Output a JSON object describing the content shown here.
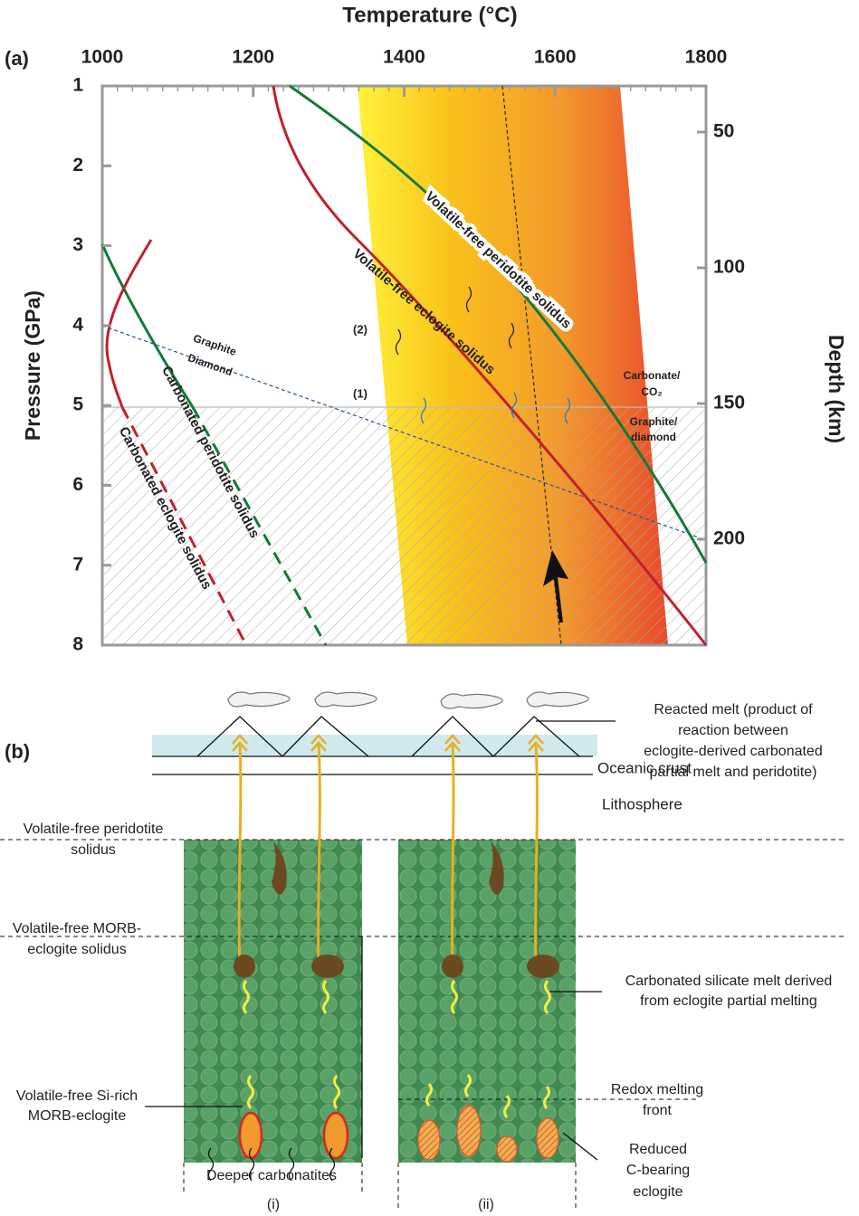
{
  "panel_a": {
    "label": "(a)",
    "x_axis_title": "Temperature (°C)",
    "y_axis_title": "Pressure (GPa)",
    "y2_axis_title": "Depth (km)",
    "xticks": [
      1000,
      1200,
      1400,
      1600,
      1800
    ],
    "yticks": [
      1,
      2,
      3,
      4,
      5,
      6,
      7,
      8
    ],
    "y2ticks": [
      50,
      100,
      150,
      200
    ],
    "curve_labels": [
      "Volatile-free peridotite solidus",
      "Volatile-free eclogite solidus",
      "Carbonated peridotite solidus",
      "Carbonated eclogite solidus"
    ],
    "annotations": {
      "graphite": "Graphite",
      "diamond": "Diamond",
      "marker_1": "(1)",
      "marker_2": "(2)",
      "carbonate": [
        "Carbonate/",
        "CO₂"
      ],
      "graphite_diamond": [
        "Graphite/",
        "diamond"
      ]
    }
  },
  "panel_b": {
    "label": "(b)",
    "oceanic_crust": "Oceanic crust",
    "lithosphere": "Lithosphere",
    "peridotite_solidus": [
      "Volatile-free peridotite",
      "solidus"
    ],
    "morb_solidus": [
      "Volatile-free MORB-",
      "eclogite solidus"
    ],
    "si_rich": [
      "Volatile-free Si-rich",
      "MORB-eclogite"
    ],
    "deeper_carbonatites": "Deeper carbonatites",
    "reacted_melt": [
      "Reacted melt (product of",
      "reaction between",
      "eclogite-derived carbonated",
      "partial melt and peridotite)"
    ],
    "carbonated_silicate": [
      "Carbonated silicate melt derived",
      "from eclogite partial melting"
    ],
    "redox_front": [
      "Redox melting",
      "front"
    ],
    "reduced_eclogite": [
      "Reduced",
      "C-bearing",
      "eclogite"
    ],
    "column_labels": [
      "(i)",
      "(ii)"
    ]
  }
}
